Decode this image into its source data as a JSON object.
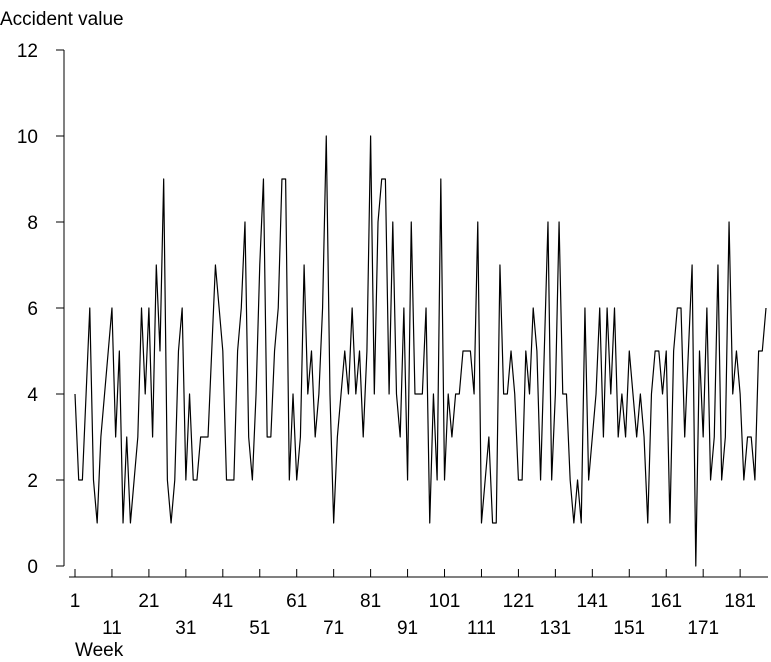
{
  "chart_data": {
    "type": "line",
    "ylabel": "Accident value",
    "xlabel": "Week",
    "ylim": [
      0,
      12
    ],
    "yticks": [
      "0",
      "2",
      "4",
      "6",
      "8",
      "10",
      "12"
    ],
    "xlim": [
      1,
      188
    ],
    "xticks_upper": [
      "1",
      "21",
      "41",
      "61",
      "81",
      "101",
      "121",
      "141",
      "161",
      "181"
    ],
    "xticks_lower": [
      "11",
      "31",
      "51",
      "71",
      "91",
      "111",
      "131",
      "151",
      "171"
    ],
    "grid": false,
    "line_color": "#000000",
    "series": [
      {
        "x": [
          1,
          2,
          3,
          4,
          5,
          6,
          7,
          8,
          9,
          10,
          11,
          12,
          13,
          14,
          15,
          16,
          17,
          18,
          19,
          20,
          21,
          22,
          23,
          24,
          25,
          26,
          27,
          28,
          29,
          30,
          31,
          32,
          33,
          34,
          35,
          36,
          37,
          38,
          39,
          40,
          41,
          42,
          43,
          44,
          45,
          46,
          47,
          48,
          49,
          50,
          51,
          52,
          53,
          54,
          55,
          56,
          57,
          58,
          59,
          60,
          61,
          62,
          63,
          64,
          65,
          66,
          67,
          68,
          69,
          70,
          71,
          72,
          73,
          74,
          75,
          76,
          77,
          78,
          79,
          80,
          81,
          82,
          83,
          84,
          85,
          86,
          87,
          88,
          89,
          90,
          91,
          92,
          93,
          94,
          95,
          96,
          97,
          98,
          99,
          100,
          101,
          102,
          103,
          104,
          105,
          106,
          107,
          108,
          109,
          110,
          111,
          112,
          113,
          114,
          115,
          116,
          117,
          118,
          119,
          120,
          121,
          122,
          123,
          124,
          125,
          126,
          127,
          128,
          129,
          130,
          131,
          132,
          133,
          134,
          135,
          136,
          137,
          138,
          139,
          140,
          141,
          142,
          143,
          144,
          145,
          146,
          147,
          148,
          149,
          150,
          151,
          152,
          153,
          154,
          155,
          156,
          157,
          158,
          159,
          160,
          161,
          162,
          163,
          164,
          165,
          166,
          167,
          168,
          169,
          170,
          171,
          172,
          173,
          174,
          175,
          176,
          177,
          178,
          179,
          180,
          181,
          182,
          183,
          184,
          185,
          186,
          187,
          188
        ],
        "y": [
          4,
          2,
          2,
          4,
          6,
          2,
          1,
          3,
          4,
          5,
          6,
          3,
          5,
          1,
          3,
          1,
          2,
          3,
          6,
          4,
          6,
          3,
          7,
          5,
          9,
          2,
          1,
          2,
          5,
          6,
          2,
          4,
          2,
          2,
          3,
          3,
          3,
          5,
          7,
          6,
          5,
          2,
          2,
          2,
          5,
          6,
          8,
          3,
          2,
          4,
          7,
          9,
          3,
          3,
          5,
          6,
          9,
          9,
          2,
          4,
          2,
          3,
          7,
          4,
          5,
          3,
          4,
          6,
          10,
          4,
          1,
          3,
          4,
          5,
          4,
          6,
          4,
          5,
          3,
          5,
          10,
          4,
          8,
          9,
          9,
          4,
          8,
          4,
          3,
          6,
          2,
          8,
          4,
          4,
          4,
          6,
          1,
          4,
          2,
          9,
          2,
          4,
          3,
          4,
          4,
          5,
          5,
          5,
          4,
          8,
          1,
          2,
          3,
          1,
          1,
          7,
          4,
          4,
          5,
          4,
          2,
          2,
          5,
          4,
          6,
          5,
          2,
          5,
          8,
          2,
          4,
          8,
          4,
          4,
          2,
          1,
          2,
          1,
          6,
          2,
          3,
          4,
          6,
          3,
          6,
          4,
          6,
          3,
          4,
          3,
          5,
          4,
          3,
          4,
          3,
          1,
          4,
          5,
          5,
          4,
          5,
          1,
          5,
          6,
          6,
          3,
          5,
          7,
          0,
          5,
          3,
          6,
          2,
          3,
          7,
          2,
          3,
          8,
          4,
          5,
          4,
          2,
          3,
          3,
          2,
          5,
          5,
          6
        ]
      }
    ]
  }
}
